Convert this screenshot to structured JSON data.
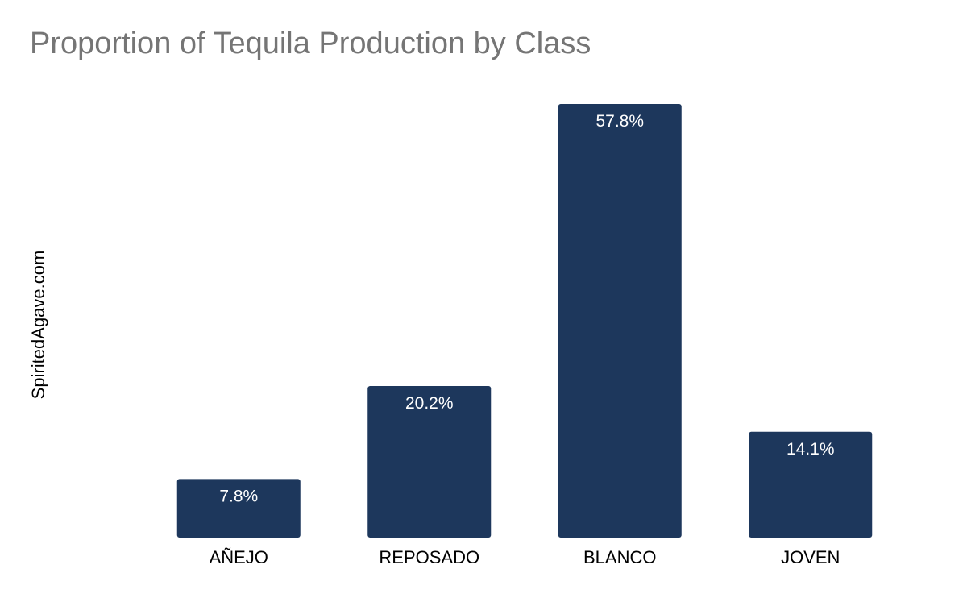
{
  "chart_data": {
    "type": "bar",
    "title": "Proportion of Tequila Production by Class",
    "ylabel": "SpiritedAgave.com",
    "xlabel": "",
    "categories": [
      "AÑEJO",
      "REPOSADO",
      "BLANCO",
      "JOVEN"
    ],
    "values": [
      7.8,
      20.2,
      57.8,
      14.1
    ],
    "data_labels": [
      "7.8%",
      "20.2%",
      "57.8%",
      "14.1%"
    ],
    "unit": "%",
    "ylim": [
      0,
      57.8
    ],
    "grid": false,
    "legend": "none",
    "bar_color": "#1d375c"
  }
}
